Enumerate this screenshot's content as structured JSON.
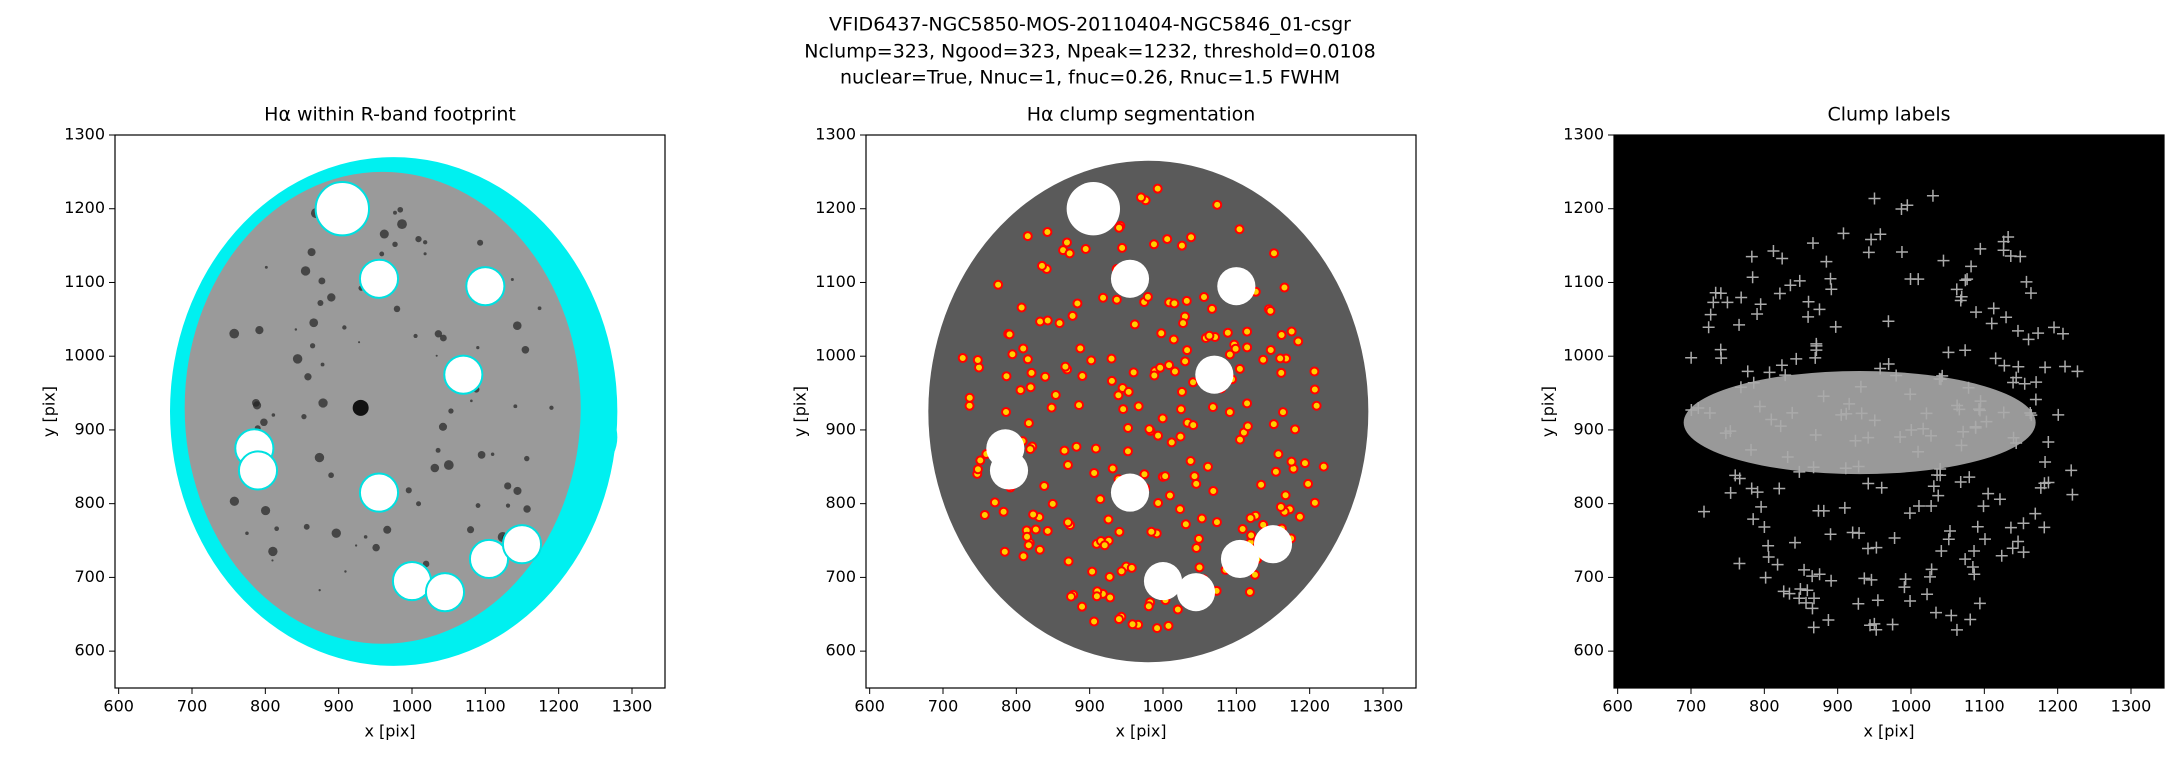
{
  "figure": {
    "title_lines": [
      "VFID6437-NGC5850-MOS-20110404-NGC5846_01-csgr",
      "Nclump=323, Ngood=323, Npeak=1232, threshold=0.0108",
      "nuclear=True, Nnuc=1, fnuc=0.26, Rnuc=1.5 FWHM"
    ]
  },
  "chart_data": [
    {
      "type": "image",
      "title": "Hα within R-band footprint",
      "xlabel": "x [pix]",
      "ylabel": "y [pix]",
      "xlim": [
        595,
        1345
      ],
      "ylim": [
        550,
        1300
      ],
      "xticks": [
        600,
        700,
        800,
        900,
        1000,
        1100,
        1200,
        1300
      ],
      "yticks": [
        600,
        700,
        800,
        900,
        1000,
        1100,
        1200,
        1300
      ],
      "style": "footprint"
    },
    {
      "type": "image",
      "title": "Hα clump segmentation",
      "xlabel": "x [pix]",
      "ylabel": "y [pix]",
      "xlim": [
        595,
        1345
      ],
      "ylim": [
        550,
        1300
      ],
      "xticks": [
        600,
        700,
        800,
        900,
        1000,
        1100,
        1200,
        1300
      ],
      "yticks": [
        600,
        700,
        800,
        900,
        1000,
        1100,
        1200,
        1300
      ],
      "style": "segmentation"
    },
    {
      "type": "image",
      "title": "Clump labels",
      "xlabel": "x [pix]",
      "ylabel": "y [pix]",
      "xlim": [
        595,
        1345
      ],
      "ylim": [
        550,
        1300
      ],
      "xticks": [
        600,
        700,
        800,
        900,
        1000,
        1100,
        1200,
        1300
      ],
      "yticks": [
        600,
        700,
        800,
        900,
        1000,
        1100,
        1200,
        1300
      ],
      "style": "labels"
    }
  ]
}
